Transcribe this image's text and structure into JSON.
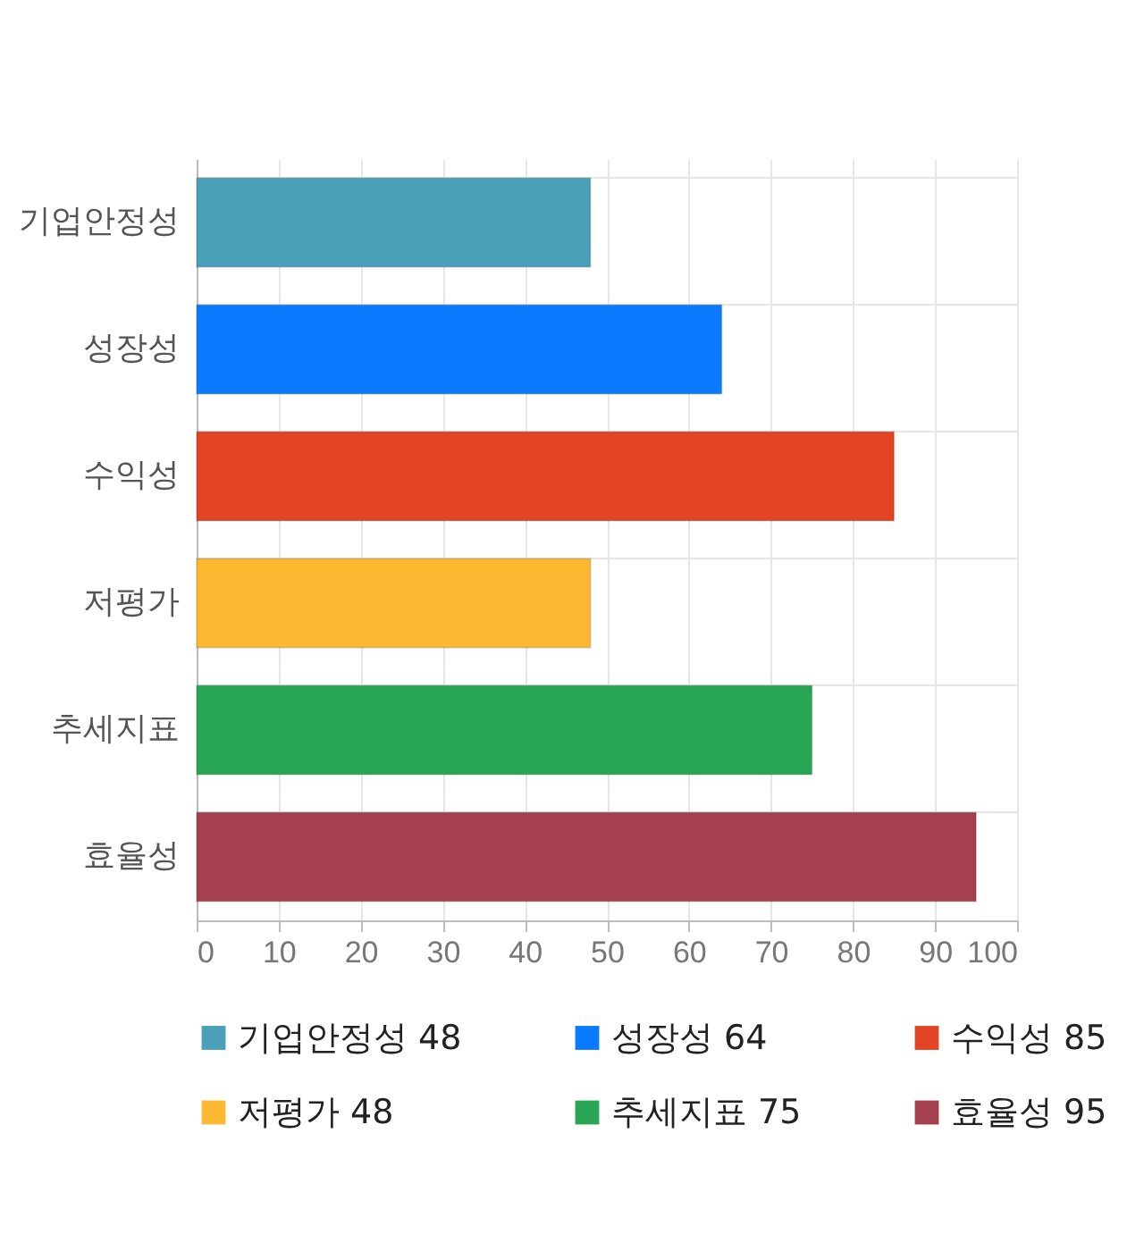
{
  "chart_data": {
    "type": "bar",
    "orientation": "horizontal",
    "categories": [
      "기업안정성",
      "성장성",
      "수익성",
      "저평가",
      "추세지표",
      "효율성"
    ],
    "series": [
      {
        "name": "기업안정성 48",
        "color": "#4aa0b8",
        "values": [
          48,
          null,
          null,
          null,
          null,
          null
        ]
      },
      {
        "name": "성장성 64",
        "color": "#0a7bff",
        "values": [
          null,
          64,
          null,
          null,
          null,
          null
        ]
      },
      {
        "name": "수익성 85",
        "color": "#e24424",
        "values": [
          null,
          null,
          85,
          null,
          null,
          null
        ]
      },
      {
        "name": "저평가 48",
        "color": "#fdb831",
        "values": [
          null,
          null,
          null,
          48,
          null,
          null
        ]
      },
      {
        "name": "추세지표 75",
        "color": "#29a654",
        "values": [
          null,
          null,
          null,
          null,
          75,
          null
        ]
      },
      {
        "name": "효율성 95",
        "color": "#a5404f",
        "values": [
          null,
          null,
          null,
          null,
          null,
          95
        ]
      }
    ],
    "xlim": [
      0,
      100
    ],
    "xticks": [
      0,
      10,
      20,
      30,
      40,
      50,
      60,
      70,
      80,
      90,
      100
    ],
    "grid": true,
    "legend": "bottom"
  }
}
